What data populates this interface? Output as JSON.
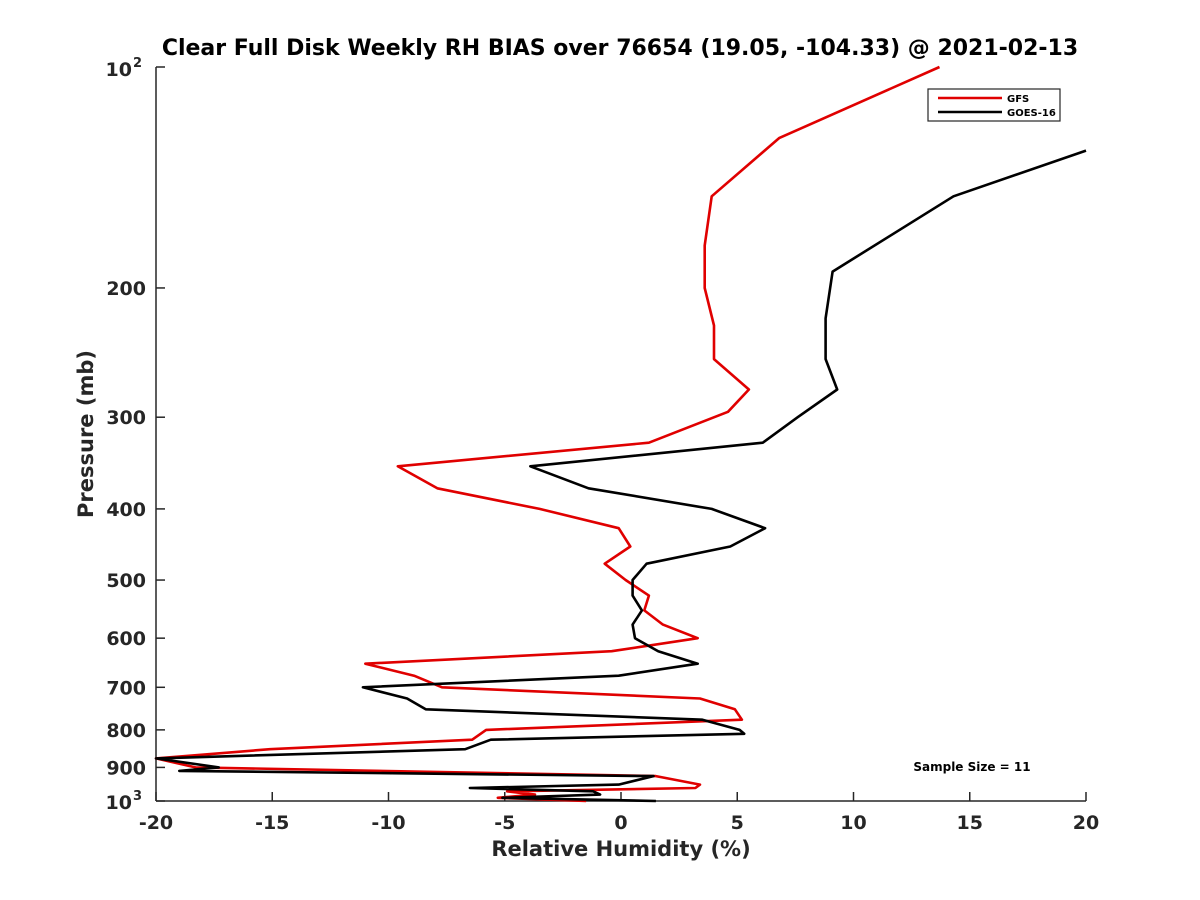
{
  "chart_data": {
    "type": "line",
    "title": "Clear Full Disk Weekly RH BIAS over 76654 (19.05, -104.33) @ 2021-02-13",
    "xlabel": "Relative Humidity (%)",
    "ylabel": "Pressure (mb)",
    "xlim": [
      -20,
      20
    ],
    "ylim": [
      100,
      1000
    ],
    "yscale": "log",
    "yreversed": true,
    "xticks": [
      -20,
      -15,
      -10,
      -5,
      0,
      5,
      10,
      15,
      20
    ],
    "xtick_labels": [
      "-20",
      "-15",
      "-10",
      "-5",
      "0",
      "5",
      "10",
      "15",
      "20"
    ],
    "yticks": [
      {
        "value": 200,
        "label": "200"
      },
      {
        "value": 300,
        "label": "300"
      },
      {
        "value": 400,
        "label": "400"
      },
      {
        "value": 500,
        "label": "500"
      },
      {
        "value": 600,
        "label": "600"
      },
      {
        "value": 700,
        "label": "700"
      },
      {
        "value": 800,
        "label": "800"
      },
      {
        "value": 900,
        "label": "900"
      }
    ],
    "ytick_top": {
      "base": "10",
      "exp": "2"
    },
    "ytick_bottom": {
      "base": "10",
      "exp": "3"
    },
    "legend_position": "top-right",
    "annotation": "Sample Size = 11",
    "series": [
      {
        "name": "GFS",
        "color": "#e00000",
        "points": [
          [
            13.7,
            100
          ],
          [
            6.8,
            125
          ],
          [
            3.9,
            150
          ],
          [
            3.6,
            175
          ],
          [
            3.6,
            200
          ],
          [
            4.0,
            225
          ],
          [
            4.0,
            250
          ],
          [
            5.5,
            275
          ],
          [
            4.6,
            295
          ],
          [
            1.2,
            325
          ],
          [
            -9.6,
            350
          ],
          [
            -7.9,
            375
          ],
          [
            -3.5,
            400
          ],
          [
            -0.1,
            425
          ],
          [
            0.4,
            450
          ],
          [
            -0.7,
            475
          ],
          [
            0.2,
            500
          ],
          [
            1.2,
            525
          ],
          [
            1.0,
            550
          ],
          [
            1.8,
            575
          ],
          [
            3.3,
            600
          ],
          [
            -0.4,
            625
          ],
          [
            -11.0,
            650
          ],
          [
            -8.9,
            675
          ],
          [
            -7.7,
            700
          ],
          [
            3.4,
            725
          ],
          [
            4.9,
            750
          ],
          [
            5.2,
            775
          ],
          [
            -5.8,
            800
          ],
          [
            -6.4,
            825
          ],
          [
            -15.1,
            850
          ],
          [
            -20.0,
            875
          ],
          [
            -18.3,
            900
          ],
          [
            1.5,
            925
          ],
          [
            3.4,
            950
          ],
          [
            3.2,
            960
          ],
          [
            -4.9,
            970
          ],
          [
            -3.7,
            980
          ],
          [
            -5.3,
            990
          ],
          [
            -1.5,
            1000
          ]
        ]
      },
      {
        "name": "GOES-16",
        "color": "#000000",
        "points": [
          [
            20.0,
            130
          ],
          [
            14.3,
            150
          ],
          [
            9.1,
            190
          ],
          [
            8.8,
            220
          ],
          [
            8.8,
            250
          ],
          [
            9.3,
            275
          ],
          [
            7.6,
            300
          ],
          [
            6.1,
            325
          ],
          [
            -3.9,
            350
          ],
          [
            -1.4,
            375
          ],
          [
            3.9,
            400
          ],
          [
            6.2,
            425
          ],
          [
            4.7,
            450
          ],
          [
            1.1,
            475
          ],
          [
            0.5,
            500
          ],
          [
            0.5,
            525
          ],
          [
            0.9,
            550
          ],
          [
            0.5,
            575
          ],
          [
            0.6,
            600
          ],
          [
            1.6,
            625
          ],
          [
            3.3,
            650
          ],
          [
            -0.1,
            675
          ],
          [
            -11.1,
            700
          ],
          [
            -9.2,
            725
          ],
          [
            -8.4,
            750
          ],
          [
            3.5,
            775
          ],
          [
            5.1,
            800
          ],
          [
            5.3,
            810
          ],
          [
            -5.6,
            825
          ],
          [
            -6.7,
            850
          ],
          [
            -20.0,
            875
          ],
          [
            -17.3,
            900
          ],
          [
            -19.0,
            910
          ],
          [
            1.4,
            925
          ],
          [
            -0.1,
            950
          ],
          [
            -6.5,
            960
          ],
          [
            -1.2,
            970
          ],
          [
            -0.9,
            980
          ],
          [
            -5.1,
            990
          ],
          [
            1.5,
            1000
          ]
        ]
      }
    ]
  }
}
